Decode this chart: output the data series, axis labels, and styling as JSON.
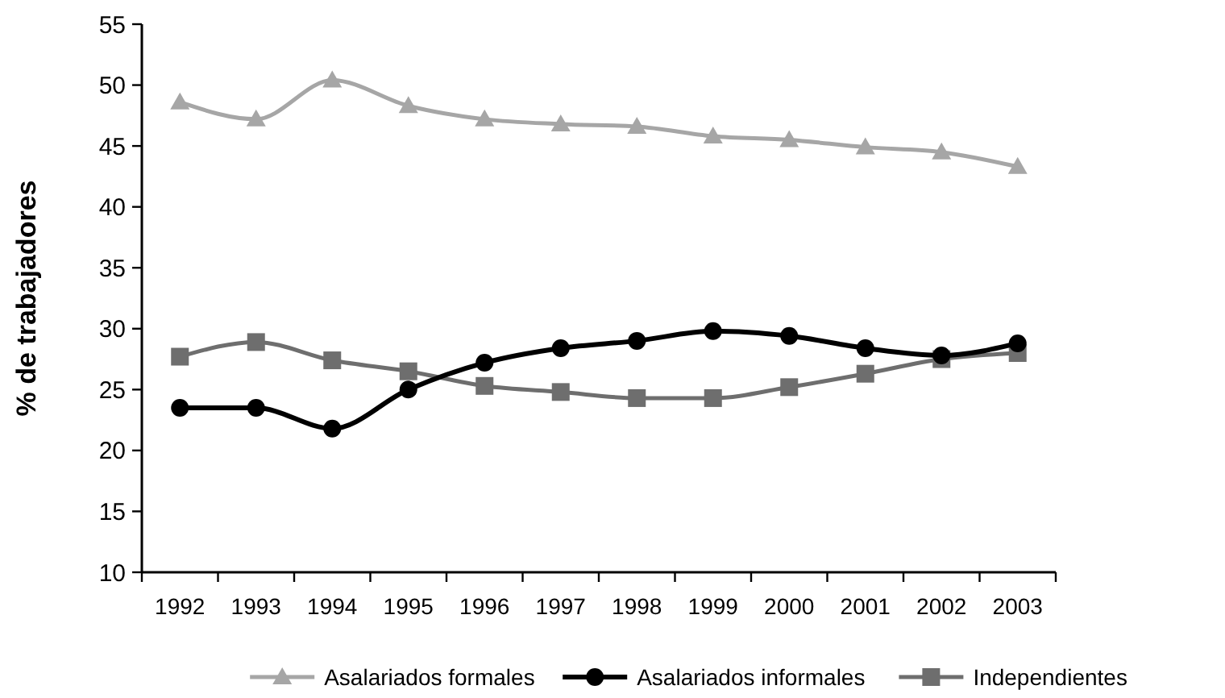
{
  "chart_data": {
    "type": "line",
    "ylabel": "% de trabajadores",
    "categories": [
      "1992",
      "1993",
      "1994",
      "1995",
      "1996",
      "1997",
      "1998",
      "1999",
      "2000",
      "2001",
      "2002",
      "2003"
    ],
    "ylim": [
      10,
      55
    ],
    "yticks": [
      10,
      15,
      20,
      25,
      30,
      35,
      40,
      45,
      50,
      55
    ],
    "grid": false,
    "legend": "bottom",
    "series": [
      {
        "name": "Asalariados formales",
        "color": "#a6a6a6",
        "marker": "triangle",
        "values": [
          48.6,
          47.2,
          50.4,
          48.3,
          47.2,
          46.8,
          46.6,
          45.8,
          45.5,
          44.9,
          44.5,
          43.3
        ]
      },
      {
        "name": "Asalariados informales",
        "color": "#000000",
        "marker": "circle",
        "values": [
          23.5,
          23.5,
          21.8,
          25.0,
          27.2,
          28.4,
          29.0,
          29.8,
          29.4,
          28.4,
          27.8,
          28.8
        ]
      },
      {
        "name": "Independientes",
        "color": "#6e6e6e",
        "marker": "square",
        "values": [
          27.7,
          28.9,
          27.4,
          26.5,
          25.3,
          24.8,
          24.3,
          24.3,
          25.2,
          26.3,
          27.5,
          28.0
        ]
      }
    ]
  }
}
